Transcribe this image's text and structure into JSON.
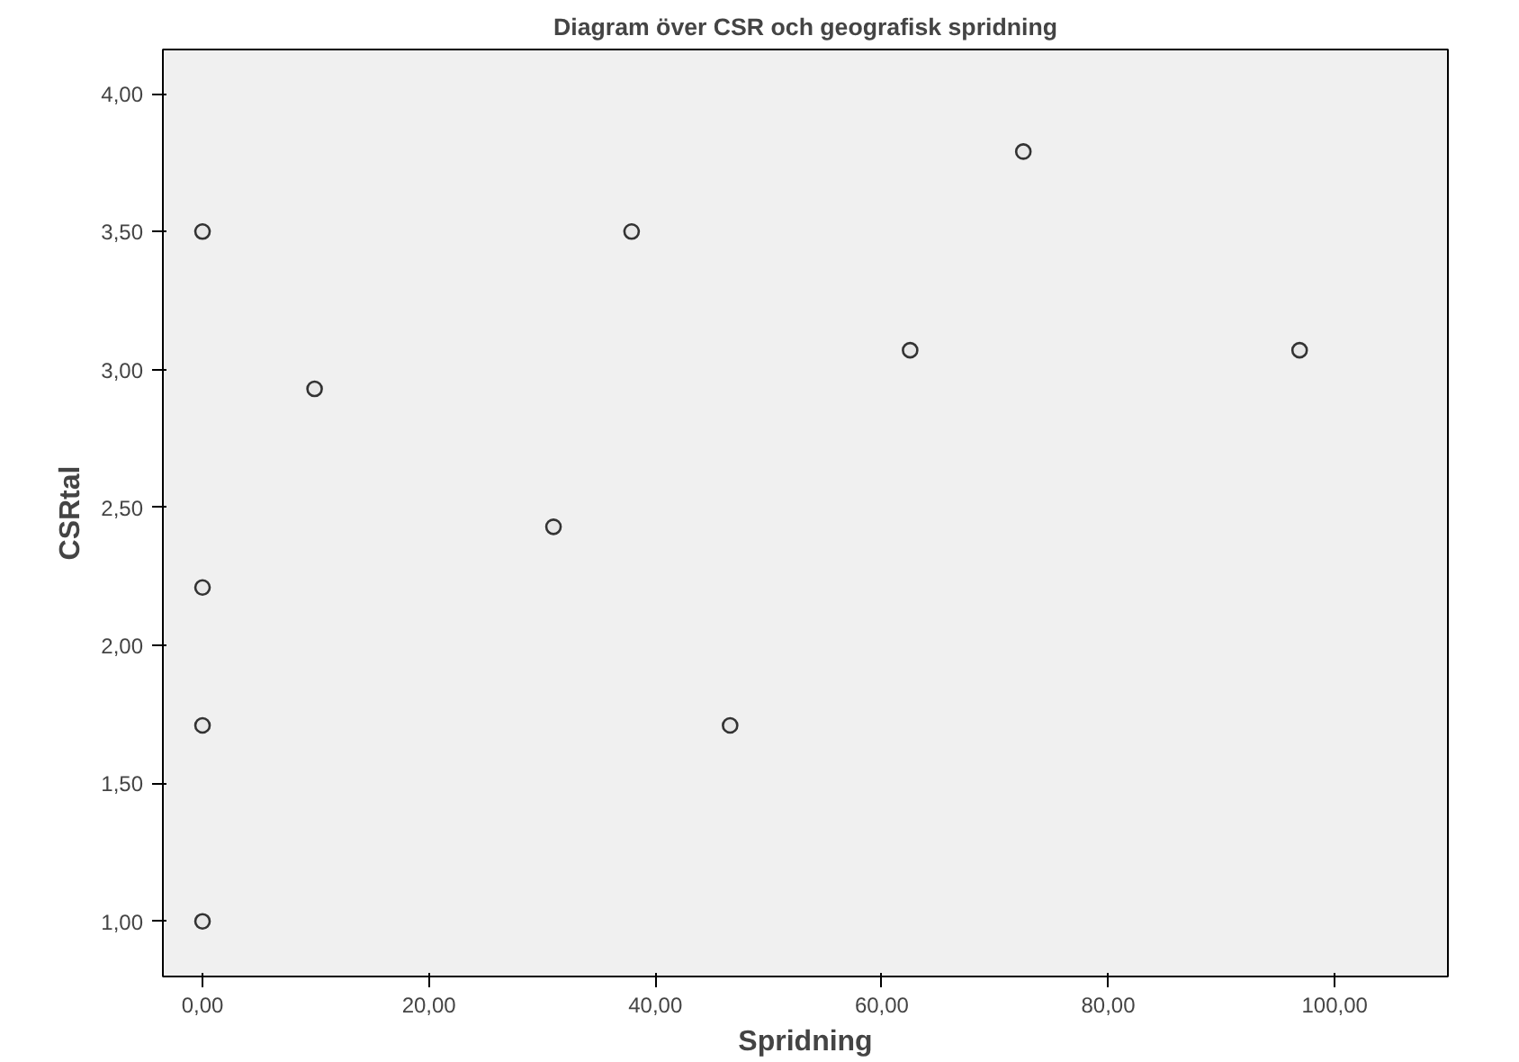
{
  "chart_data": {
    "type": "scatter",
    "title": "Diagram över CSR och geografisk spridning",
    "xlabel": "Spridning",
    "ylabel": "CSRtal",
    "x": [
      0,
      0,
      0,
      0,
      9.9,
      31,
      37.9,
      46.6,
      62.5,
      72.5,
      96.9
    ],
    "values": [
      3.5,
      2.21,
      1.71,
      1.0,
      2.93,
      2.43,
      3.5,
      1.71,
      3.07,
      3.79,
      3.07
    ],
    "color": "#333333",
    "marker": "circle",
    "grid": false,
    "xlim": [
      -3.5,
      110
    ],
    "ylim": [
      0.8,
      4.16
    ],
    "xticks": [
      {
        "value": 0,
        "label": "0,00"
      },
      {
        "value": 20,
        "label": "20,00"
      },
      {
        "value": 40,
        "label": "40,00"
      },
      {
        "value": 60,
        "label": "60,00"
      },
      {
        "value": 80,
        "label": "80,00"
      },
      {
        "value": 100,
        "label": "100,00"
      }
    ],
    "yticks": [
      {
        "value": 1,
        "label": "1,00"
      },
      {
        "value": 1.5,
        "label": "1,50"
      },
      {
        "value": 2,
        "label": "2,00"
      },
      {
        "value": 2.5,
        "label": "2,50"
      },
      {
        "value": 3,
        "label": "3,00"
      },
      {
        "value": 3.5,
        "label": "3,50"
      },
      {
        "value": 4,
        "label": "4,00"
      }
    ]
  }
}
